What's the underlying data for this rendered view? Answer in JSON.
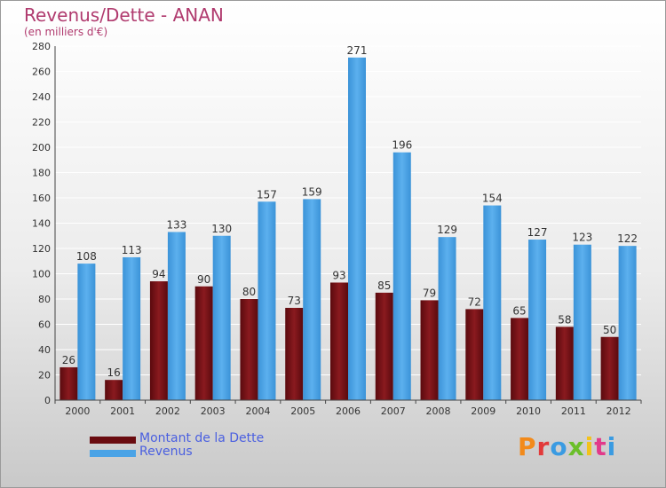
{
  "header": {
    "title": "Revenus/Dette - ANAN",
    "subtitle": "(en milliers d'€)"
  },
  "colors": {
    "dette": "#7a0f14",
    "revenus": "#4aa3e6",
    "title": "#b03a6e"
  },
  "legend": {
    "dette_label": "Montant de la Dette",
    "revenus_label": "Revenus"
  },
  "logo": {
    "letters": [
      "P",
      "r",
      "o",
      "x",
      "i",
      "t",
      "i"
    ],
    "colors": [
      "#f28a1b",
      "#e23a3a",
      "#3a9be2",
      "#6bbf2a",
      "#f2c21b",
      "#e23a8a",
      "#3a9be2"
    ]
  },
  "chart_data": {
    "type": "bar",
    "categories": [
      "2000",
      "2001",
      "2002",
      "2003",
      "2004",
      "2005",
      "2006",
      "2007",
      "2008",
      "2009",
      "2010",
      "2011",
      "2012"
    ],
    "series": [
      {
        "name": "Montant de la Dette",
        "values": [
          26,
          16,
          94,
          90,
          80,
          73,
          93,
          85,
          79,
          72,
          65,
          58,
          50
        ]
      },
      {
        "name": "Revenus",
        "values": [
          108,
          113,
          133,
          130,
          157,
          159,
          271,
          196,
          129,
          154,
          127,
          123,
          122
        ]
      }
    ],
    "yticks": [
      0,
      20,
      40,
      60,
      80,
      100,
      120,
      140,
      160,
      180,
      200,
      220,
      240,
      260,
      280
    ],
    "ylim": [
      0,
      280
    ],
    "grid": true,
    "legend_position": "bottom-left"
  }
}
